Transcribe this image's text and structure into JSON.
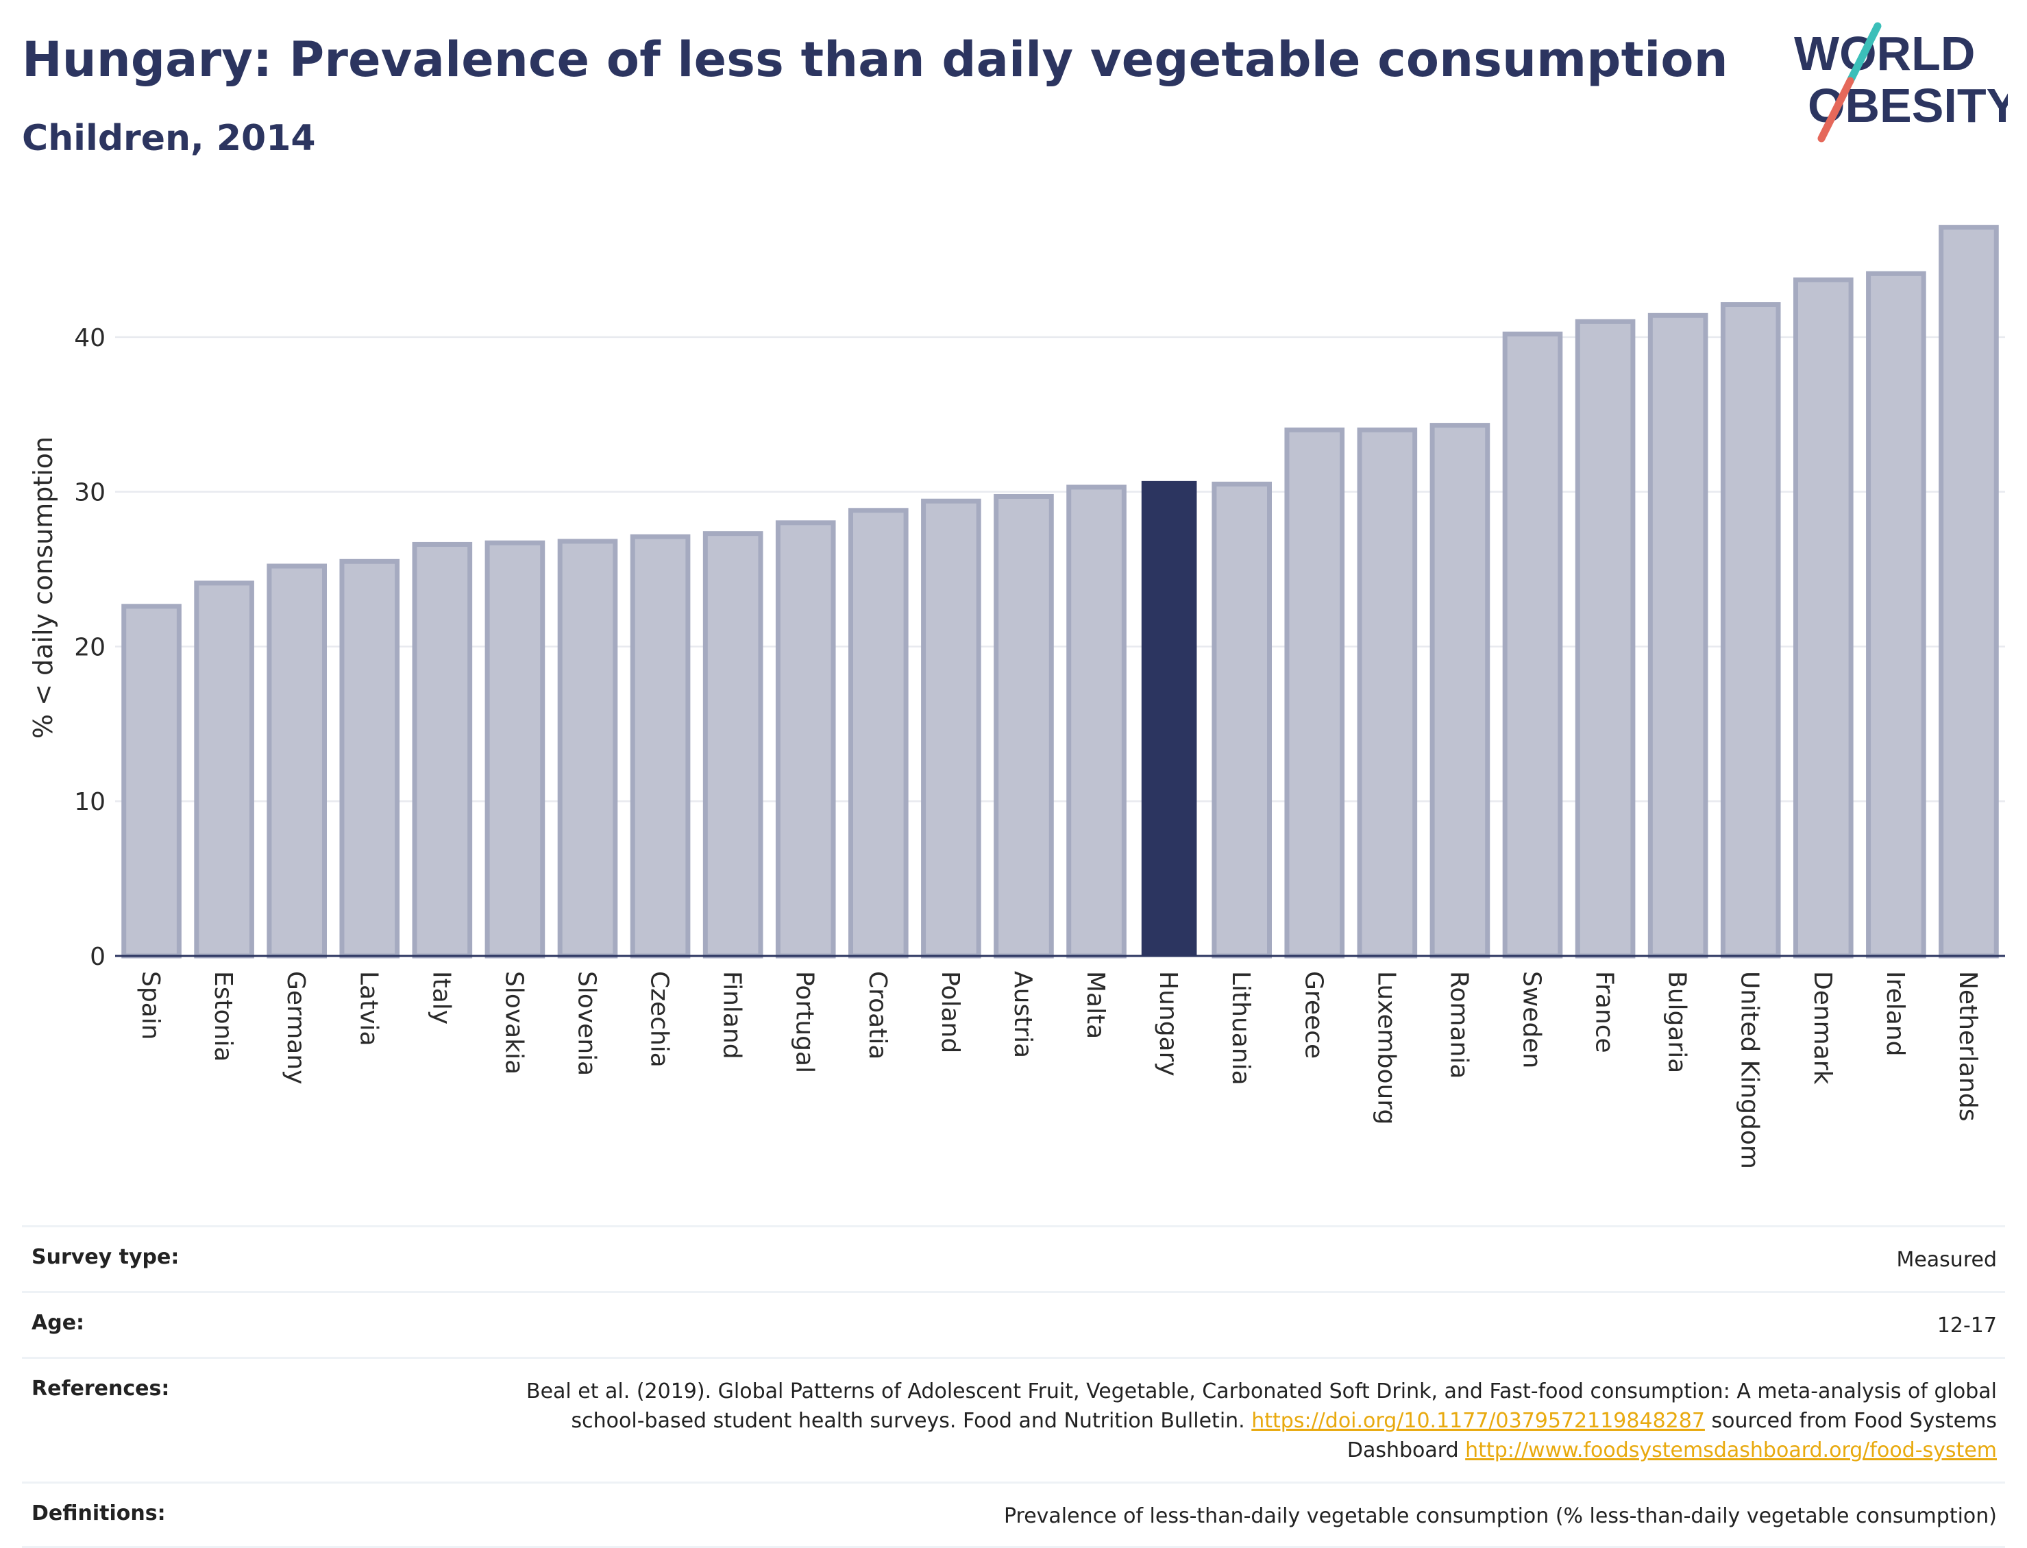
{
  "header": {
    "title": "Hungary: Prevalence of less than daily vegetable consumption",
    "subtitle": "Children, 2014"
  },
  "logo": {
    "line1": "WORLD",
    "line2": "OBESITY",
    "colors": {
      "text": "#2c3560",
      "slash_top": "#3bbfb9",
      "slash_bottom": "#e5685a"
    }
  },
  "colors": {
    "bar_fill": "#bfc2d1",
    "bar_stroke": "#a5aac0",
    "highlight": "#2c3560",
    "grid": "#e8eaef",
    "axis": "#2c3560",
    "link": "#e8a90e"
  },
  "chart_data": {
    "type": "bar",
    "categories": [
      "Spain",
      "Estonia",
      "Germany",
      "Latvia",
      "Italy",
      "Slovakia",
      "Slovenia",
      "Czechia",
      "Finland",
      "Portugal",
      "Croatia",
      "Poland",
      "Austria",
      "Malta",
      "Hungary",
      "Lithuania",
      "Greece",
      "Luxembourg",
      "Romania",
      "Sweden",
      "France",
      "Bulgaria",
      "United Kingdom",
      "Denmark",
      "Ireland",
      "Netherlands"
    ],
    "values": [
      22.6,
      24.1,
      25.2,
      25.5,
      26.6,
      26.7,
      26.8,
      27.1,
      27.3,
      28.0,
      28.8,
      29.4,
      29.7,
      30.3,
      30.7,
      30.5,
      34.0,
      34.0,
      34.3,
      40.2,
      41.0,
      41.4,
      42.1,
      43.7,
      44.1,
      47.1
    ],
    "highlight": "Hungary",
    "xlabel": "",
    "ylabel": "% < daily consumption",
    "ylim": [
      0,
      48.5
    ],
    "yticks": [
      0,
      10,
      20,
      30,
      40
    ],
    "grid": true,
    "legend": "none"
  },
  "meta": {
    "survey_label": "Survey type:",
    "survey_value": "Measured",
    "age_label": "Age:",
    "age_value": "12-17",
    "references_label": "References:",
    "references_text1": "Beal et al. (2019). Global Patterns of Adolescent Fruit, Vegetable, Carbonated Soft Drink, and Fast-food consumption: A meta-analysis of global school-based student health surveys. Food and Nutrition Bulletin. ",
    "references_link1": "https://doi.org/10.1177/0379572119848287",
    "references_text2": " sourced from Food Systems Dashboard ",
    "references_link2": "http://www.foodsystemsdashboard.org/food-system",
    "definitions_label": "Definitions:",
    "definitions_value": "Prevalence of less-than-daily vegetable consumption (% less-than-daily vegetable consumption)"
  }
}
